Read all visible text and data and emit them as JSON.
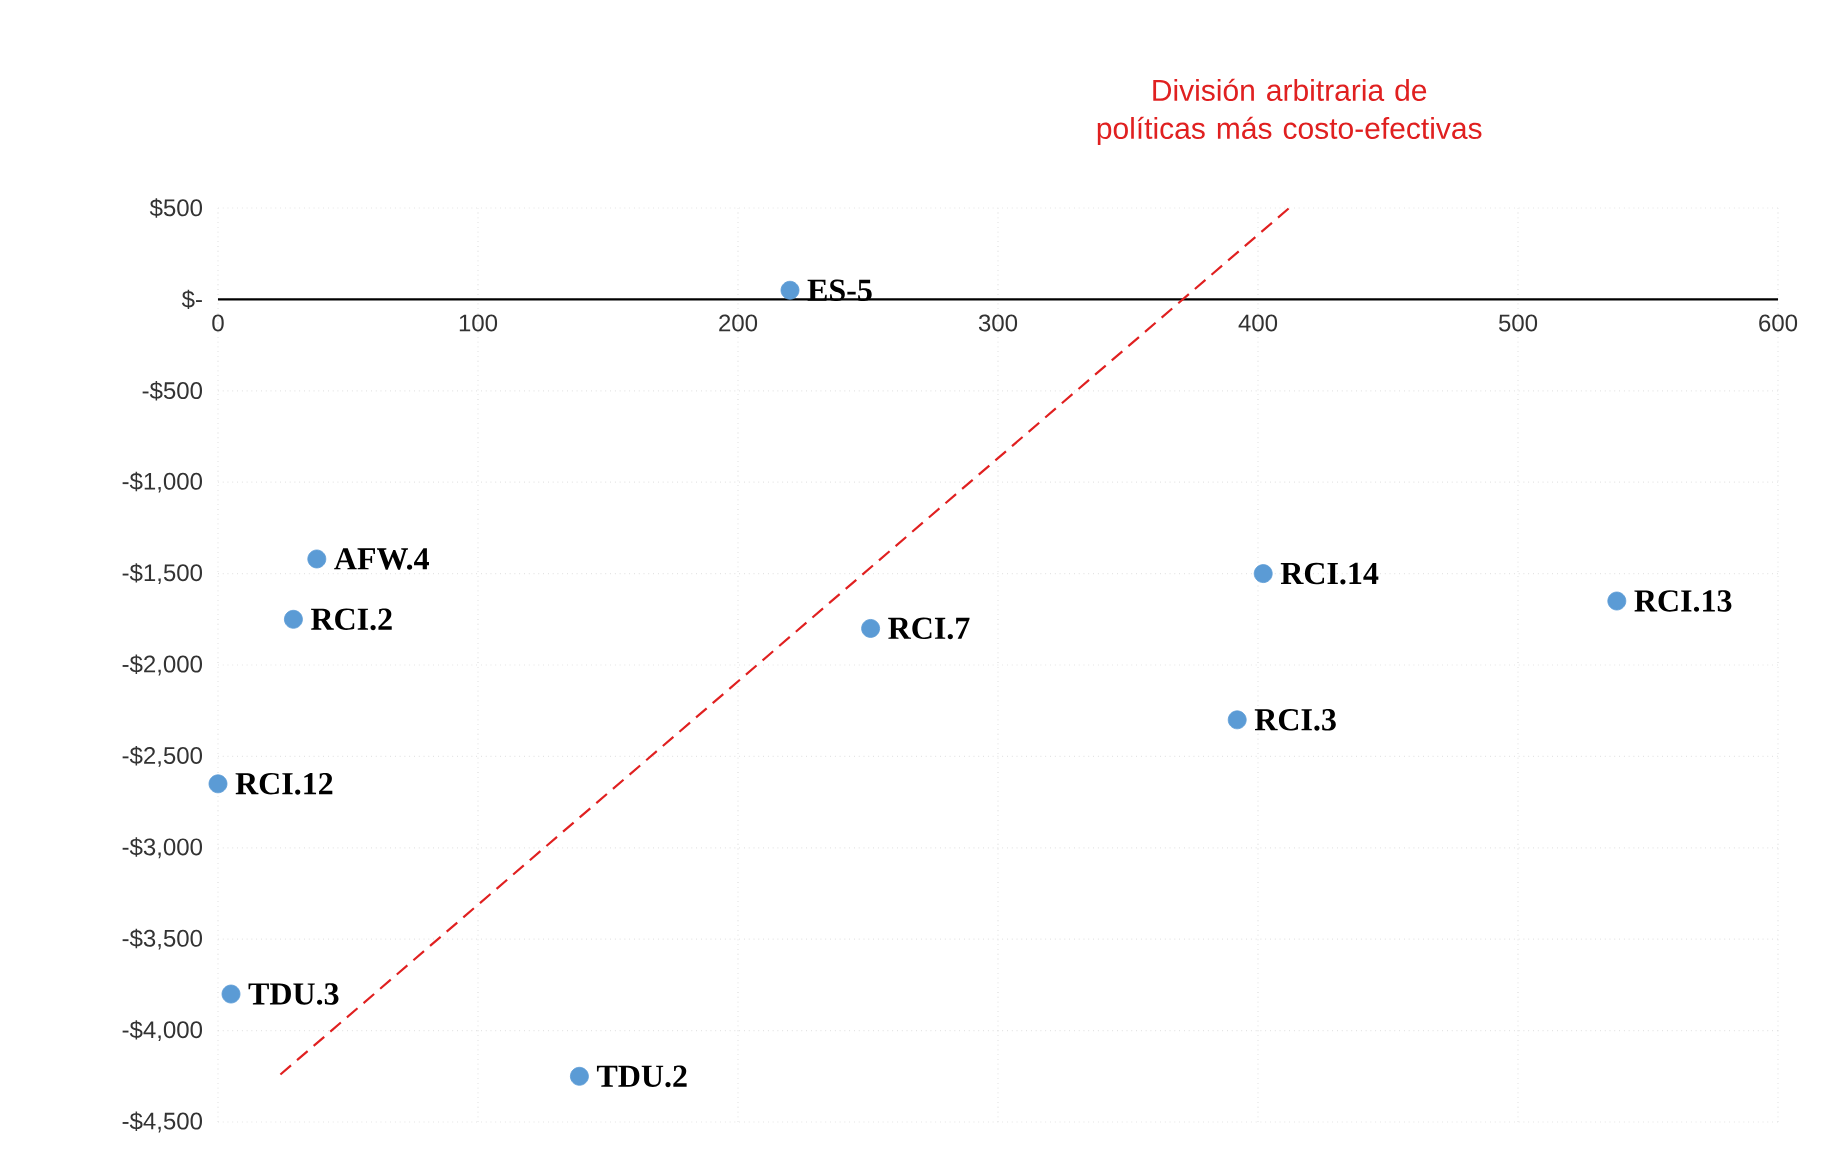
{
  "chart_data": {
    "type": "scatter",
    "xlim": [
      0,
      600
    ],
    "xticks": [
      0,
      100,
      200,
      300,
      400,
      500,
      600
    ],
    "ylim": [
      -4500,
      500
    ],
    "yticks": [
      {
        "value": 500,
        "label": "$500"
      },
      {
        "value": 0,
        "label": "$-"
      },
      {
        "value": -500,
        "label": "-$500"
      },
      {
        "value": -1000,
        "label": "-$1,000"
      },
      {
        "value": -1500,
        "label": "-$1,500"
      },
      {
        "value": -2000,
        "label": "-$2,000"
      },
      {
        "value": -2500,
        "label": "-$2,500"
      },
      {
        "value": -3000,
        "label": "-$3,000"
      },
      {
        "value": -3500,
        "label": "-$3,500"
      },
      {
        "value": -4000,
        "label": "-$4,000"
      },
      {
        "value": -4500,
        "label": "-$4,500"
      }
    ],
    "grid": true,
    "series": [
      {
        "type": "scatter",
        "marker": "circle",
        "color": "#5b9bd5",
        "x": [
          220,
          38,
          29,
          0,
          5,
          139,
          251,
          392,
          402,
          538
        ],
        "values": [
          50,
          -1420,
          -1750,
          -2650,
          -3800,
          -4250,
          -1800,
          -2300,
          -1500,
          -1650
        ]
      },
      {
        "type": "line",
        "name": "División arbitraria de políticas más costo-efectivas",
        "color": "#e02020",
        "line_style": "dashed",
        "x": [
          24,
          412
        ],
        "values": [
          -4240,
          500
        ]
      }
    ],
    "annotations": [
      {
        "text": "ES-5",
        "x": 220,
        "y": 50
      },
      {
        "text": "AFW.4",
        "x": 38,
        "y": -1420
      },
      {
        "text": "RCI.2",
        "x": 29,
        "y": -1750
      },
      {
        "text": "RCI.12",
        "x": 0,
        "y": -2650
      },
      {
        "text": "TDU.3",
        "x": 5,
        "y": -3800
      },
      {
        "text": "TDU.2",
        "x": 139,
        "y": -4250
      },
      {
        "text": "RCI.7",
        "x": 251,
        "y": -1800
      },
      {
        "text": "RCI.3",
        "x": 392,
        "y": -2300
      },
      {
        "text": "RCI.14",
        "x": 402,
        "y": -1500
      },
      {
        "text": "RCI.13",
        "x": 538,
        "y": -1650
      }
    ]
  }
}
